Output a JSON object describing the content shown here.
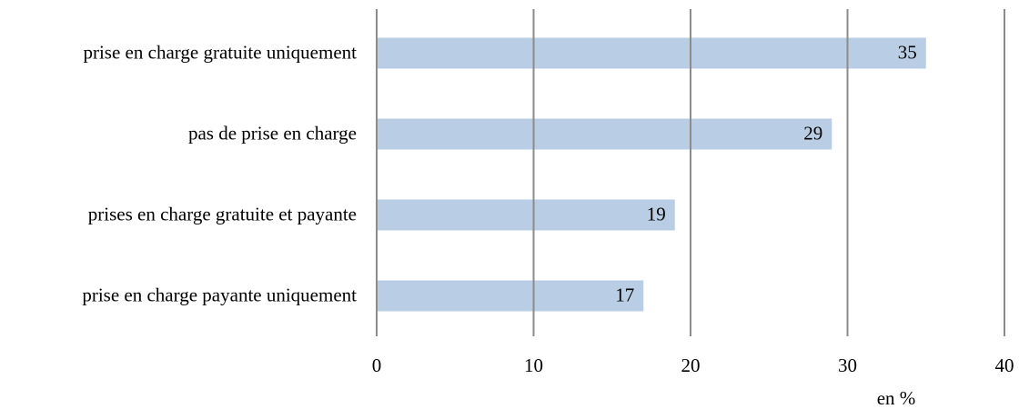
{
  "chart_data": {
    "type": "bar",
    "orientation": "horizontal",
    "categories": [
      "prise en charge gratuite uniquement",
      "pas de prise en charge",
      "prises en charge gratuite et payante",
      "prise en charge payante uniquement"
    ],
    "values": [
      35,
      29,
      19,
      17
    ],
    "color": "#b9cde5",
    "xlabel": "en %",
    "xlim": [
      0,
      40
    ],
    "xticks": [
      0,
      10,
      20,
      30,
      40
    ],
    "grid": true
  }
}
